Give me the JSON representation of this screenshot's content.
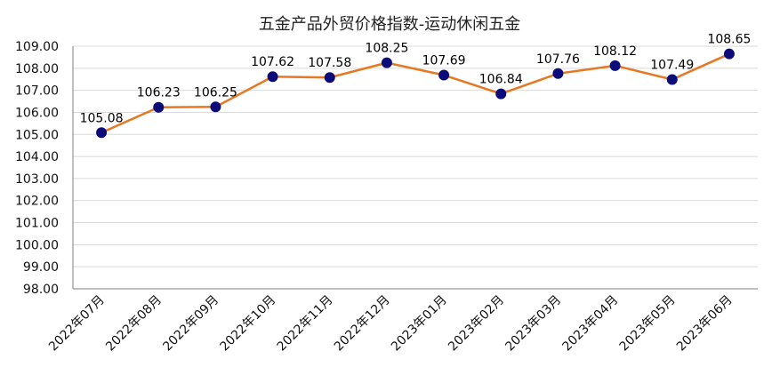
{
  "chart_data": {
    "type": "line",
    "title": "五金产品外贸价格指数-运动休闲五金",
    "xlabel": "",
    "ylabel": "",
    "categories": [
      "2022年07月",
      "2022年08月",
      "2022年09月",
      "2022年10月",
      "2022年11月",
      "2022年12月",
      "2023年01月",
      "2023年02月",
      "2023年03月",
      "2023年04月",
      "2023年05月",
      "2023年06月"
    ],
    "series": [
      {
        "values": [
          105.08,
          106.23,
          106.25,
          107.62,
          107.58,
          108.25,
          107.69,
          106.84,
          107.76,
          108.12,
          107.49,
          108.65
        ],
        "data_labels": [
          "105.08",
          "106.23",
          "106.25",
          "107.62",
          "107.58",
          "108.25",
          "107.69",
          "106.84",
          "107.76",
          "108.12",
          "107.49",
          "108.65"
        ]
      }
    ],
    "ylim": [
      98,
      109
    ],
    "yticks": [
      "98.00",
      "99.00",
      "100.00",
      "101.00",
      "102.00",
      "103.00",
      "104.00",
      "105.00",
      "106.00",
      "107.00",
      "108.00",
      "109.00"
    ],
    "grid": true,
    "legend": "none",
    "colors": {
      "line": "#E87722",
      "marker": "#0B0B7A",
      "grid": "#D9D9D9",
      "axis": "#808080"
    }
  }
}
